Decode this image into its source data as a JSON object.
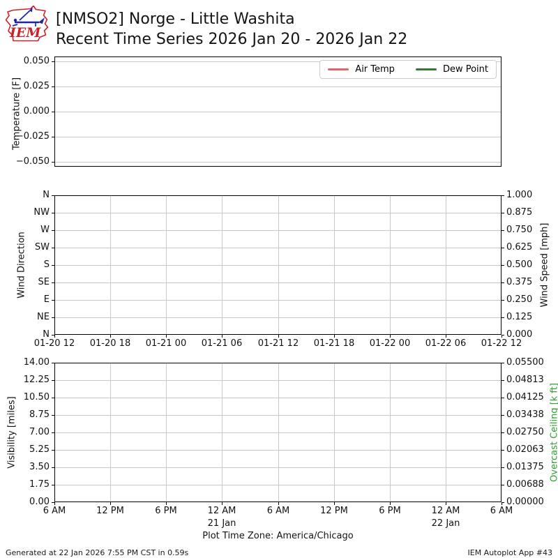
{
  "header": {
    "logo_text": "IEM",
    "title_line1": "[NMSO2] Norge - Little Washita",
    "title_line2": "Recent Time Series 2026 Jan 20 - 2026 Jan 22"
  },
  "colors": {
    "air_temp": "#d9686f",
    "dew_point": "#3c753c",
    "overcast_ceiling_label": "#2ca02c",
    "grid": "#c8c8c8",
    "logo_red": "#cc2127",
    "logo_blue": "#1c24a8"
  },
  "chart_data": [
    {
      "type": "line",
      "panel": "temperature",
      "ylabel": "Temperature [F]",
      "ylim": [
        -0.05,
        0.05
      ],
      "yticks": [
        "0.050",
        "0.025",
        "0.000",
        "−0.025",
        "−0.050"
      ],
      "grid": "horizontal",
      "legend_position": "upper right",
      "series": [
        {
          "name": "Air Temp",
          "color": "#d9686f",
          "x": [],
          "values": []
        },
        {
          "name": "Dew Point",
          "color": "#3c753c",
          "x": [],
          "values": []
        }
      ]
    },
    {
      "type": "line",
      "panel": "wind",
      "ylabel_left": "Wind Direction",
      "ylabel_right": "Wind Speed [mph]",
      "ylim_right": [
        0.0,
        1.0
      ],
      "yticks_left": [
        "N",
        "NW",
        "W",
        "SW",
        "S",
        "SE",
        "E",
        "NE",
        "N"
      ],
      "yticks_right": [
        "1.000",
        "0.875",
        "0.750",
        "0.625",
        "0.500",
        "0.375",
        "0.250",
        "0.125",
        "0.000"
      ],
      "xticks": [
        "01-20 12",
        "01-20 18",
        "01-21 00",
        "01-21 06",
        "01-21 12",
        "01-21 18",
        "01-22 00",
        "01-22 06",
        "01-22 12"
      ],
      "grid": "both",
      "series": []
    },
    {
      "type": "line",
      "panel": "visibility",
      "ylabel_left": "Visibility [miles]",
      "ylabel_right": "Overcast Ceiling [k ft]",
      "ylim_left": [
        0.0,
        14.0
      ],
      "ylim_right": [
        0.0,
        0.055
      ],
      "yticks_left": [
        "14.00",
        "12.25",
        "10.50",
        "8.75",
        "7.00",
        "5.25",
        "3.50",
        "1.75",
        "0.00"
      ],
      "yticks_right": [
        "0.05500",
        "0.04813",
        "0.04125",
        "0.03438",
        "0.02750",
        "0.02063",
        "0.01375",
        "0.00688",
        "0.00000"
      ],
      "xticks": [
        "6 AM",
        "12 PM",
        "6 PM",
        "12 AM",
        "6 AM",
        "12 PM",
        "6 PM",
        "12 AM",
        "6 AM"
      ],
      "xtick_sublabels": [
        {
          "index": 3,
          "label": "21 Jan"
        },
        {
          "index": 7,
          "label": "22 Jan"
        }
      ],
      "xlabel": "Plot Time Zone: America/Chicago",
      "grid": "both",
      "series": []
    }
  ],
  "footer": {
    "generated": "Generated at 22 Jan 2026 7:55 PM CST in 0.59s",
    "app": "IEM Autoplot App #43"
  }
}
